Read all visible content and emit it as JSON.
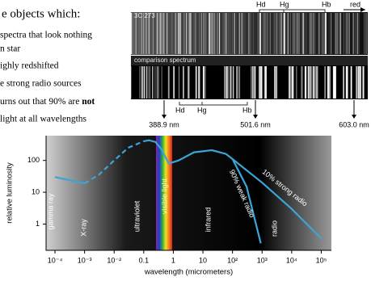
{
  "slide": {
    "heading": "e objects which:",
    "bullets": [
      "spectra that look nothing",
      "n star",
      "ighly redshifted",
      "e strong radio sources",
      "urns out that 90% are ",
      "light at all wavelengths"
    ],
    "bold": "not"
  },
  "spectra": {
    "object": "3C 273",
    "lines_top": [
      "Hd",
      "Hg",
      "Hb"
    ],
    "direction": "red",
    "comparison": "comparison spectrum",
    "lines_bottom": [
      "Hd",
      "Hg",
      "Hb"
    ],
    "wavelengths": [
      "388.9 nm",
      "501.6 nm",
      "603.0 nm"
    ]
  },
  "chart_data": {
    "type": "line",
    "xlabel": "wavelength (micrometers)",
    "ylabel": "relative luminosity",
    "log_x": true,
    "log_y": true,
    "xlim": [
      5e-05,
      220000
    ],
    "ylim": [
      0.15,
      600
    ],
    "xticks": [
      {
        "value": 0.0001,
        "label": "10⁻⁴"
      },
      {
        "value": 0.001,
        "label": "10⁻³"
      },
      {
        "value": 0.01,
        "label": "10⁻²"
      },
      0.1,
      1,
      10,
      {
        "value": 100,
        "label": "10²"
      },
      {
        "value": 1000,
        "label": "10³"
      },
      {
        "value": 10000,
        "label": "10⁴"
      },
      {
        "value": 100000,
        "label": "10⁵"
      }
    ],
    "yticks": [
      1,
      10,
      100
    ],
    "regions": [
      "gamma ray",
      "X-ray",
      "ultraviolet",
      "visible light",
      "infrared",
      "radio"
    ],
    "series": [
      {
        "color": "#3aa6d8",
        "dashed": false,
        "x": [
          0.0001,
          0.001
        ],
        "values": [
          30,
          19
        ]
      },
      {
        "color": "#3aa6d8",
        "dashed": true,
        "x": [
          0.001,
          0.003,
          0.01,
          0.03,
          0.1
        ],
        "values": [
          19,
          35,
          100,
          250,
          400
        ]
      },
      {
        "color": "#3aa6d8",
        "dashed": false,
        "x": [
          0.1,
          0.15,
          0.25,
          0.4,
          0.7,
          1.5,
          5,
          20,
          60,
          100
        ],
        "values": [
          400,
          430,
          380,
          220,
          80,
          100,
          180,
          210,
          160,
          110
        ]
      },
      {
        "color": "#3aa6d8",
        "dashed": false,
        "label": "90% weak radio",
        "x": [
          100,
          300,
          900
        ],
        "values": [
          110,
          15,
          0.25
        ]
      },
      {
        "color": "#3aa6d8",
        "dashed": false,
        "label": "10% strong radio",
        "x": [
          100,
          1000,
          10000,
          100000
        ],
        "values": [
          110,
          20,
          3,
          0.35
        ]
      }
    ]
  }
}
